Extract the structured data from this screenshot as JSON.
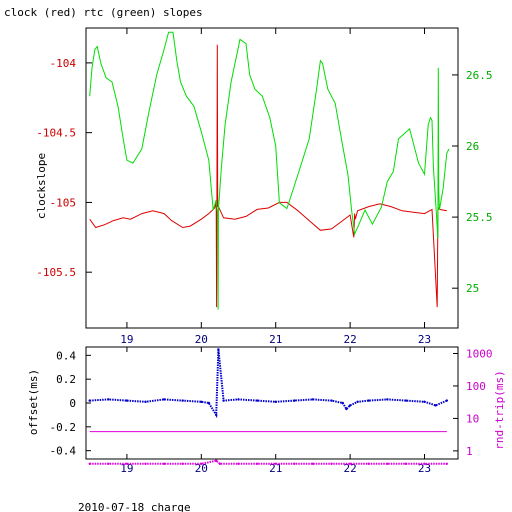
{
  "chart_data": [
    {
      "type": "line",
      "title": "clock (red) rtc (green) slopes",
      "ylabel": "clockslope",
      "y2label": "",
      "xlim": [
        18.45,
        23.45
      ],
      "ylim": [
        -105.9,
        -103.75
      ],
      "y2lim": [
        24.72,
        26.83
      ],
      "x_ticks": [
        19,
        20,
        21,
        22,
        23
      ],
      "y_ticks": [
        -104,
        -104.5,
        -105,
        -105.5
      ],
      "y2_ticks": [
        26.5,
        26,
        25.5,
        25
      ],
      "colors": {
        "clock": "#dd0000",
        "rtc": "#00dd00",
        "axis": "#000000",
        "x_tick_labels": "#000080",
        "y_tick_labels": "#cc0000",
        "y2_tick_labels": "#00aa00"
      },
      "series": [
        {
          "name": "clock",
          "axis": "left",
          "x": [
            18.5,
            18.58,
            18.7,
            18.82,
            18.95,
            19.05,
            19.2,
            19.35,
            19.5,
            19.6,
            19.75,
            19.85,
            20.0,
            20.1,
            20.18,
            20.2,
            20.205,
            20.21,
            20.215,
            20.22,
            20.23,
            20.3,
            20.45,
            20.6,
            20.75,
            20.9,
            21.05,
            21.15,
            21.3,
            21.45,
            21.6,
            21.75,
            21.9,
            22.0,
            22.05,
            22.06,
            22.07,
            22.1,
            22.25,
            22.4,
            22.55,
            22.7,
            22.85,
            23.0,
            23.1,
            23.17,
            23.18,
            23.19,
            23.2,
            23.3
          ],
          "y": [
            -105.12,
            -105.18,
            -105.16,
            -105.13,
            -105.11,
            -105.12,
            -105.08,
            -105.06,
            -105.08,
            -105.13,
            -105.18,
            -105.17,
            -105.12,
            -105.08,
            -105.04,
            -105.0,
            -105.75,
            -105.0,
            -103.87,
            -105.03,
            -105.03,
            -105.11,
            -105.12,
            -105.1,
            -105.05,
            -105.04,
            -105.0,
            -105.0,
            -105.06,
            -105.13,
            -105.2,
            -105.19,
            -105.13,
            -105.09,
            -105.25,
            -105.08,
            -105.12,
            -105.06,
            -105.03,
            -105.01,
            -105.03,
            -105.06,
            -105.07,
            -105.08,
            -105.05,
            -105.75,
            -105.05,
            -105.04,
            -105.05,
            -105.06
          ]
        },
        {
          "name": "rtc",
          "axis": "right",
          "x": [
            18.5,
            18.53,
            18.57,
            18.6,
            18.65,
            18.72,
            18.8,
            18.88,
            18.95,
            19.0,
            19.08,
            19.2,
            19.3,
            19.4,
            19.5,
            19.56,
            19.62,
            19.67,
            19.72,
            19.8,
            19.9,
            20.0,
            20.1,
            20.16,
            20.2,
            20.22,
            20.225,
            20.23,
            20.27,
            20.32,
            20.4,
            20.52,
            20.6,
            20.65,
            20.72,
            20.82,
            20.92,
            21.0,
            21.05,
            21.1,
            21.15,
            21.3,
            21.45,
            21.55,
            21.6,
            21.63,
            21.7,
            21.8,
            21.9,
            21.97,
            22.02,
            22.06,
            22.12,
            22.2,
            22.3,
            22.42,
            22.5,
            22.58,
            22.65,
            22.8,
            22.92,
            23.0,
            23.05,
            23.08,
            23.1,
            23.12,
            23.15,
            23.18,
            23.185,
            23.19,
            23.2,
            23.25,
            23.3,
            23.33
          ],
          "y": [
            26.35,
            26.55,
            26.68,
            26.7,
            26.58,
            26.48,
            26.45,
            26.28,
            26.05,
            25.9,
            25.88,
            25.98,
            26.25,
            26.5,
            26.68,
            26.8,
            26.8,
            26.6,
            26.45,
            26.35,
            26.28,
            26.1,
            25.9,
            25.55,
            25.62,
            25.52,
            24.85,
            25.55,
            25.85,
            26.15,
            26.45,
            26.75,
            26.72,
            26.5,
            26.4,
            26.35,
            26.2,
            26.0,
            25.6,
            25.58,
            25.56,
            25.8,
            26.05,
            26.4,
            26.6,
            26.58,
            26.4,
            26.3,
            26.0,
            25.8,
            25.55,
            25.38,
            25.45,
            25.55,
            25.45,
            25.57,
            25.75,
            25.82,
            26.05,
            26.12,
            25.88,
            25.8,
            26.15,
            26.2,
            26.18,
            25.85,
            25.6,
            25.35,
            26.55,
            25.7,
            25.55,
            25.7,
            25.95,
            25.98
          ]
        }
      ]
    },
    {
      "type": "scatter",
      "title": "",
      "ylabel": "offset(ms)",
      "y2label": "rnd-trip(ms)",
      "xlim": [
        18.45,
        23.45
      ],
      "ylim": [
        -0.47,
        0.47
      ],
      "y2lim_log10": [
        -0.25,
        3.2
      ],
      "x_ticks": [
        19,
        20,
        21,
        22,
        23
      ],
      "y_ticks": [
        0.4,
        0.2,
        0,
        -0.2,
        -0.4
      ],
      "y2_ticks": [
        1000,
        100,
        10,
        1
      ],
      "colors": {
        "offset": "#0000cc",
        "rtt": "#dd00dd",
        "axis": "#000000",
        "x_tick_labels": "#000080",
        "y2_tick_labels": "#cc00cc"
      },
      "series": [
        {
          "name": "offset",
          "axis": "left",
          "x": [
            18.5,
            18.75,
            19.0,
            19.25,
            19.5,
            19.75,
            20.0,
            20.1,
            20.2,
            20.23,
            20.3,
            20.5,
            20.75,
            21.0,
            21.25,
            21.5,
            21.75,
            21.9,
            21.95,
            22.0,
            22.1,
            22.25,
            22.5,
            22.75,
            23.0,
            23.15,
            23.3
          ],
          "y": [
            0.02,
            0.03,
            0.02,
            0.01,
            0.03,
            0.02,
            0.01,
            0.0,
            -0.1,
            0.45,
            0.02,
            0.03,
            0.02,
            0.01,
            0.02,
            0.03,
            0.02,
            0.0,
            -0.05,
            -0.02,
            0.01,
            0.02,
            0.03,
            0.02,
            0.01,
            -0.02,
            0.02
          ]
        },
        {
          "name": "rtt",
          "axis": "right",
          "x": [
            18.5,
            18.75,
            19.0,
            19.25,
            19.5,
            19.75,
            20.0,
            20.2,
            20.25,
            20.5,
            20.75,
            21.0,
            21.25,
            21.5,
            21.75,
            22.0,
            22.25,
            22.5,
            22.75,
            23.0,
            23.3
          ],
          "y": [
            0.4,
            0.4,
            0.4,
            0.4,
            0.4,
            0.4,
            0.4,
            0.5,
            0.4,
            0.4,
            0.4,
            0.4,
            0.4,
            0.4,
            0.4,
            0.4,
            0.4,
            0.4,
            0.4,
            0.4,
            0.4
          ]
        }
      ]
    }
  ],
  "footer": {
    "caption": "2010-07-18 charge"
  }
}
